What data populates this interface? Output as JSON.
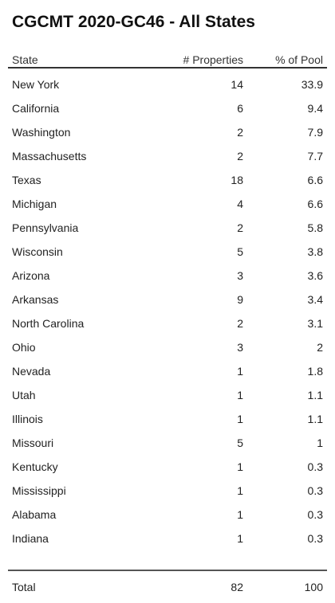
{
  "header": {
    "title": "CGCMT 2020-GC46 - All States"
  },
  "table": {
    "columns": [
      "State",
      "# Properties",
      "% of Pool"
    ],
    "rows": [
      [
        "New York",
        14,
        33.9
      ],
      [
        "California",
        6,
        9.4
      ],
      [
        "Washington",
        2,
        7.9
      ],
      [
        "Massachusetts",
        2,
        7.7
      ],
      [
        "Texas",
        18,
        6.6
      ],
      [
        "Michigan",
        4,
        6.6
      ],
      [
        "Pennsylvania",
        2,
        5.8
      ],
      [
        "Wisconsin",
        5,
        3.8
      ],
      [
        "Arizona",
        3,
        3.6
      ],
      [
        "Arkansas",
        9,
        3.4
      ],
      [
        "North Carolina",
        2,
        3.1
      ],
      [
        "Ohio",
        3,
        2
      ],
      [
        "Nevada",
        1,
        1.8
      ],
      [
        "Utah",
        1,
        1.1
      ],
      [
        "Illinois",
        1,
        1.1
      ],
      [
        "Missouri",
        5,
        1
      ],
      [
        "Kentucky",
        1,
        0.3
      ],
      [
        "Mississippi",
        1,
        0.3
      ],
      [
        "Alabama",
        1,
        0.3
      ],
      [
        "Indiana",
        1,
        0.3
      ]
    ],
    "total": [
      "Total",
      82,
      100
    ]
  }
}
